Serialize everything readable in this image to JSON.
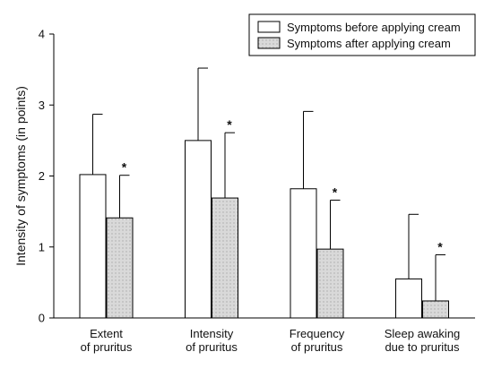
{
  "chart_data": {
    "type": "bar",
    "title": "",
    "ylabel": "Intensity of symptoms (in points)",
    "xlabel": "",
    "ylim": [
      0,
      4
    ],
    "yticks": [
      0,
      1,
      2,
      3,
      4
    ],
    "legend_position": "top-right",
    "grid": false,
    "categories": [
      [
        "Extent",
        "of pruritus"
      ],
      [
        "Intensity",
        "of pruritus"
      ],
      [
        "Frequency",
        "of pruritus"
      ],
      [
        "Sleep awaking",
        "due to pruritus"
      ]
    ],
    "series": [
      {
        "name": "Symptoms before applying cream",
        "fill": "#ffffff",
        "values": [
          2.02,
          2.5,
          1.82,
          0.55
        ],
        "error_upper": [
          2.87,
          3.52,
          2.91,
          1.46
        ]
      },
      {
        "name": "Symptoms after applying cream",
        "fill": "#d9d9d9",
        "values": [
          1.41,
          1.69,
          0.97,
          0.24
        ],
        "error_upper": [
          2.01,
          2.61,
          1.66,
          0.89
        ]
      }
    ],
    "significance_marker": "*",
    "significance": [
      true,
      true,
      true,
      true
    ]
  }
}
